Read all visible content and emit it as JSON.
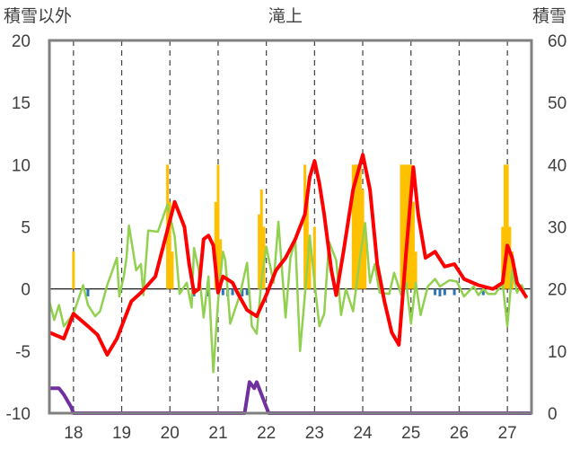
{
  "chart_data": {
    "type": "bar",
    "title": "滝上",
    "ylabel_left": "積雪以外",
    "ylabel_right": "積雪",
    "ylim_left": [
      -10,
      20
    ],
    "ylim_right": [
      0,
      60
    ],
    "yticks_left": [
      "20",
      "15",
      "10",
      "5",
      "0",
      "-5",
      "-10"
    ],
    "yticks_right": [
      "60",
      "50",
      "40",
      "30",
      "20",
      "10",
      "0"
    ],
    "x_range": [
      17.5,
      27.5
    ],
    "x_categories": [
      "18",
      "19",
      "20",
      "21",
      "22",
      "23",
      "24",
      "25",
      "26",
      "27"
    ],
    "grid": "vertical dashed at each day",
    "colors": {
      "frame": "#808080",
      "grid": "#404040",
      "precip_bars": "#FFC000",
      "blue_bars": "#2E75B6",
      "red_line": "#FF0000",
      "green_line": "#92D050",
      "purple_line": "#7030A0"
    },
    "series": [
      {
        "role": "orange-bars",
        "points": [
          [
            18.0,
            3
          ],
          [
            19.95,
            10
          ],
          [
            20.0,
            7
          ],
          [
            20.05,
            3
          ],
          [
            20.95,
            7
          ],
          [
            21.0,
            10
          ],
          [
            21.05,
            4
          ],
          [
            21.85,
            6
          ],
          [
            21.9,
            8
          ],
          [
            21.95,
            5
          ],
          [
            22.8,
            10
          ],
          [
            22.85,
            8
          ],
          [
            22.9,
            4
          ],
          [
            23.0,
            5
          ],
          [
            23.8,
            10
          ],
          [
            23.85,
            10
          ],
          [
            23.9,
            10
          ],
          [
            23.95,
            10
          ],
          [
            24.0,
            8
          ],
          [
            24.05,
            5
          ],
          [
            24.8,
            10
          ],
          [
            24.85,
            10
          ],
          [
            24.9,
            10
          ],
          [
            24.95,
            10
          ],
          [
            25.0,
            10
          ],
          [
            25.05,
            7
          ],
          [
            25.1,
            3
          ],
          [
            26.9,
            5
          ],
          [
            26.95,
            10
          ],
          [
            27.0,
            10
          ],
          [
            27.05,
            5
          ],
          [
            27.1,
            3
          ]
        ]
      },
      {
        "role": "blue-bars",
        "points": [
          [
            18.3,
            -0.6
          ],
          [
            20.5,
            -0.6
          ],
          [
            20.8,
            -0.6
          ],
          [
            21.1,
            -0.5
          ],
          [
            21.2,
            -0.6
          ],
          [
            21.3,
            -0.5
          ],
          [
            21.5,
            -0.6
          ],
          [
            21.6,
            -0.5
          ],
          [
            25.5,
            -0.5
          ],
          [
            25.6,
            -0.6
          ],
          [
            25.7,
            -0.5
          ],
          [
            25.9,
            -0.5
          ],
          [
            26.5,
            -0.5
          ]
        ]
      },
      {
        "role": "red-line",
        "points": [
          [
            17.5,
            -3.5
          ],
          [
            17.8,
            -4
          ],
          [
            18.0,
            -2
          ],
          [
            18.3,
            -3
          ],
          [
            18.5,
            -3.7
          ],
          [
            18.7,
            -5.3
          ],
          [
            18.9,
            -4
          ],
          [
            19.2,
            -1
          ],
          [
            19.4,
            -0.3
          ],
          [
            19.7,
            1
          ],
          [
            19.9,
            4
          ],
          [
            20.1,
            7
          ],
          [
            20.3,
            5
          ],
          [
            20.4,
            2
          ],
          [
            20.5,
            -0.3
          ],
          [
            20.6,
            0
          ],
          [
            20.7,
            4
          ],
          [
            20.8,
            4.3
          ],
          [
            20.9,
            3.5
          ],
          [
            21.0,
            -0.3
          ],
          [
            21.1,
            1
          ],
          [
            21.3,
            0.5
          ],
          [
            21.4,
            -0.3
          ],
          [
            21.5,
            -1
          ],
          [
            21.6,
            -1.7
          ],
          [
            21.8,
            -2.2
          ],
          [
            22.0,
            -0.5
          ],
          [
            22.2,
            1.5
          ],
          [
            22.4,
            2.5
          ],
          [
            22.6,
            4
          ],
          [
            22.8,
            6
          ],
          [
            22.9,
            9
          ],
          [
            23.0,
            10.3
          ],
          [
            23.1,
            8.5
          ],
          [
            23.2,
            6
          ],
          [
            23.35,
            1.5
          ],
          [
            23.45,
            -0.5
          ],
          [
            23.6,
            3
          ],
          [
            23.8,
            8
          ],
          [
            24.0,
            10.8
          ],
          [
            24.15,
            8
          ],
          [
            24.3,
            2
          ],
          [
            24.45,
            -1
          ],
          [
            24.6,
            -3.5
          ],
          [
            24.75,
            -4.5
          ],
          [
            24.9,
            3
          ],
          [
            25.05,
            9.8
          ],
          [
            25.15,
            6
          ],
          [
            25.3,
            2.5
          ],
          [
            25.5,
            3
          ],
          [
            25.7,
            1.8
          ],
          [
            25.9,
            2
          ],
          [
            26.1,
            0.8
          ],
          [
            26.4,
            0.3
          ],
          [
            26.7,
            0
          ],
          [
            26.9,
            0.5
          ],
          [
            27.0,
            3.5
          ],
          [
            27.1,
            2.5
          ],
          [
            27.2,
            0.5
          ],
          [
            27.4,
            -0.7
          ]
        ]
      },
      {
        "role": "green-line",
        "points": [
          [
            17.5,
            -1
          ],
          [
            17.6,
            -2.5
          ],
          [
            17.7,
            -1.3
          ],
          [
            17.8,
            -3
          ],
          [
            18.0,
            -2
          ],
          [
            18.2,
            0.3
          ],
          [
            18.3,
            -1.3
          ],
          [
            18.45,
            -2.2
          ],
          [
            18.55,
            -1.8
          ],
          [
            18.7,
            0.3
          ],
          [
            18.9,
            2.5
          ],
          [
            18.95,
            -0.6
          ],
          [
            19.05,
            1.1
          ],
          [
            19.1,
            2.5
          ],
          [
            19.15,
            5.1
          ],
          [
            19.3,
            1.5
          ],
          [
            19.4,
            2
          ],
          [
            19.45,
            -0.5
          ],
          [
            19.55,
            4.7
          ],
          [
            19.75,
            4.6
          ],
          [
            19.95,
            6.8
          ],
          [
            20.1,
            4.2
          ],
          [
            20.2,
            -0.4
          ],
          [
            20.35,
            0.5
          ],
          [
            20.45,
            -1.5
          ],
          [
            20.5,
            3.3
          ],
          [
            20.6,
            1.5
          ],
          [
            20.7,
            -2.3
          ],
          [
            20.8,
            1
          ],
          [
            20.9,
            -6.7
          ],
          [
            21.0,
            -1
          ],
          [
            21.1,
            3
          ],
          [
            21.15,
            2.3
          ],
          [
            21.25,
            -2.8
          ],
          [
            21.45,
            -0.5
          ],
          [
            21.6,
            2.1
          ],
          [
            21.7,
            -3
          ],
          [
            21.8,
            -3.6
          ],
          [
            21.9,
            0.7
          ],
          [
            22.0,
            3.4
          ],
          [
            22.15,
            0.5
          ],
          [
            22.25,
            5.4
          ],
          [
            22.4,
            -2.3
          ],
          [
            22.5,
            2.5
          ],
          [
            22.6,
            4
          ],
          [
            22.7,
            -5
          ],
          [
            22.8,
            -0.5
          ],
          [
            22.9,
            4.3
          ],
          [
            23.0,
            0.5
          ],
          [
            23.1,
            -3
          ],
          [
            23.2,
            -2
          ],
          [
            23.3,
            3.8
          ],
          [
            23.45,
            2.3
          ],
          [
            23.55,
            -2.1
          ],
          [
            23.65,
            0
          ],
          [
            23.8,
            -1.8
          ],
          [
            23.95,
            2.7
          ],
          [
            24.05,
            5.3
          ],
          [
            24.15,
            0.5
          ],
          [
            24.25,
            2
          ],
          [
            24.35,
            -0.3
          ],
          [
            24.55,
            -0.4
          ],
          [
            24.65,
            1.3
          ],
          [
            24.8,
            -0.5
          ],
          [
            24.9,
            0.5
          ],
          [
            25.0,
            -2.8
          ],
          [
            25.1,
            0.5
          ],
          [
            25.2,
            -2.1
          ],
          [
            25.35,
            0.2
          ],
          [
            25.5,
            0.8
          ],
          [
            25.6,
            0.2
          ],
          [
            25.8,
            0.7
          ],
          [
            25.95,
            0.6
          ],
          [
            26.1,
            -0.6
          ],
          [
            26.3,
            0.2
          ],
          [
            26.4,
            -0.5
          ],
          [
            26.5,
            0
          ],
          [
            26.6,
            -0.4
          ],
          [
            26.75,
            -0.4
          ],
          [
            26.9,
            0.5
          ],
          [
            27.0,
            -3
          ],
          [
            27.1,
            1.5
          ],
          [
            27.2,
            -0.3
          ],
          [
            27.3,
            0.3
          ],
          [
            27.4,
            -0.8
          ]
        ]
      },
      {
        "role": "purple-line",
        "axis": "right",
        "points": [
          [
            17.5,
            4
          ],
          [
            17.7,
            4
          ],
          [
            17.8,
            3
          ],
          [
            17.95,
            1
          ],
          [
            18.0,
            0
          ],
          [
            21.55,
            0
          ],
          [
            21.65,
            5
          ],
          [
            21.75,
            4
          ],
          [
            21.8,
            5
          ],
          [
            21.9,
            3
          ],
          [
            22.0,
            1
          ],
          [
            22.05,
            0
          ],
          [
            27.5,
            0
          ]
        ]
      }
    ]
  }
}
